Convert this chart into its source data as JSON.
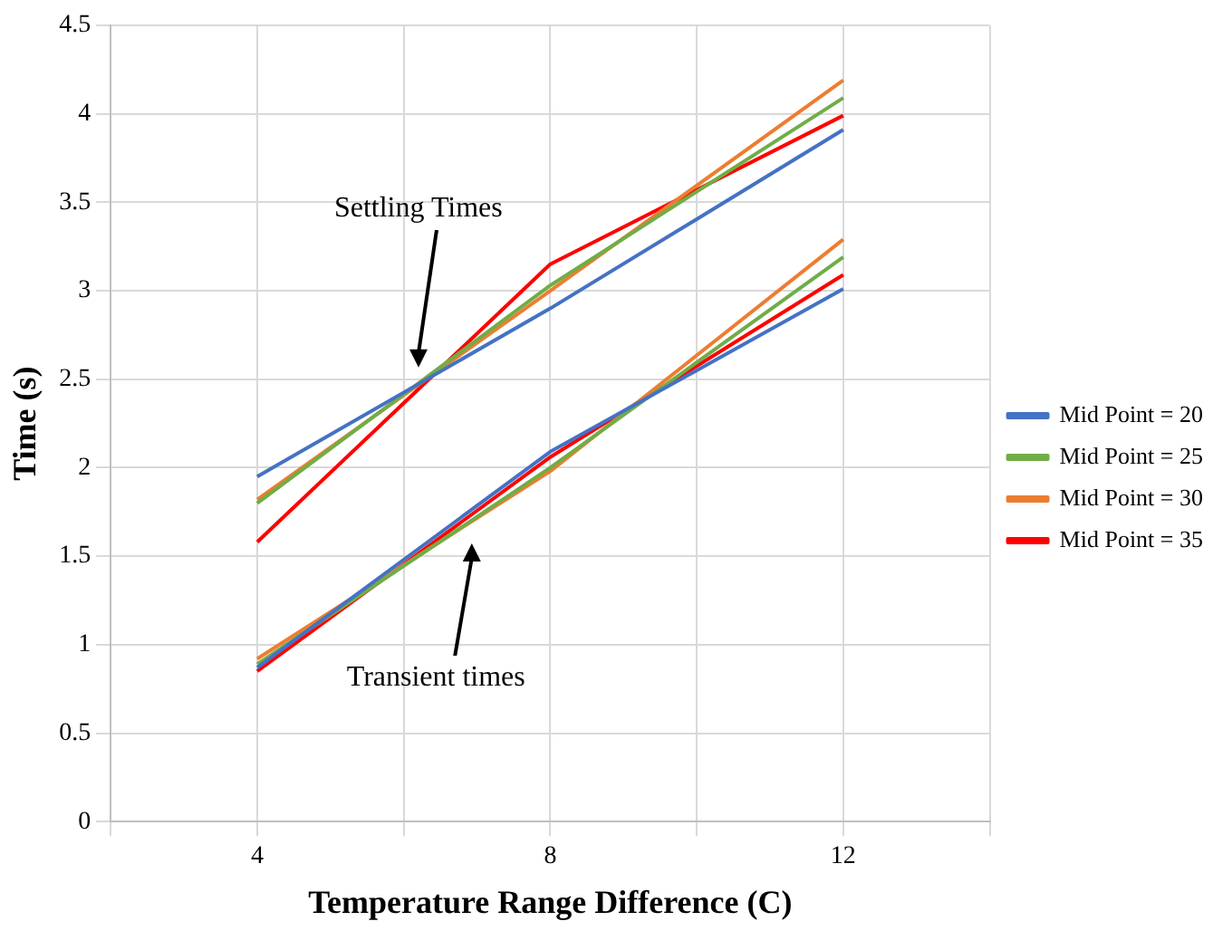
{
  "chart_data": {
    "type": "line",
    "xlabel": "Temperature Range Difference (C)",
    "ylabel": "Time (s)",
    "x": [
      4,
      8,
      12
    ],
    "series": [
      {
        "name": "Mid Point = 20",
        "color": "#4472c4",
        "values": [
          1.95,
          2.9,
          3.91
        ]
      },
      {
        "name": "Mid Point = 25",
        "color": "#70ad47",
        "values": [
          1.8,
          3.03,
          4.09
        ]
      },
      {
        "name": "Mid Point = 30",
        "color": "#ed7d31",
        "values": [
          1.82,
          3.0,
          4.19
        ]
      },
      {
        "name": "Mid Point = 35",
        "color": "#ff0000",
        "values": [
          1.58,
          3.15,
          3.99
        ]
      },
      {
        "color": "#4472c4",
        "values": [
          0.87,
          2.09,
          3.01
        ]
      },
      {
        "color": "#70ad47",
        "values": [
          0.89,
          2.0,
          3.19
        ]
      },
      {
        "color": "#ed7d31",
        "values": [
          0.92,
          1.98,
          3.29
        ]
      },
      {
        "color": "#ff0000",
        "values": [
          0.85,
          2.06,
          3.09
        ]
      }
    ],
    "xlim": [
      2,
      14
    ],
    "xticks": [
      {
        "value": 2,
        "label": null
      },
      4,
      {
        "value": 6,
        "label": null
      },
      8,
      {
        "value": 10,
        "label": null
      },
      12,
      {
        "value": 14,
        "label": null
      }
    ],
    "ylim": [
      0,
      4.5
    ],
    "yticks": [
      0,
      0.5,
      1,
      1.5,
      2,
      2.5,
      3,
      3.5,
      4,
      4.5
    ],
    "annotations": [
      "Settling Times",
      "Transient times"
    ],
    "grid": true,
    "legend": "right",
    "marker": "none",
    "line_style": "solid"
  }
}
